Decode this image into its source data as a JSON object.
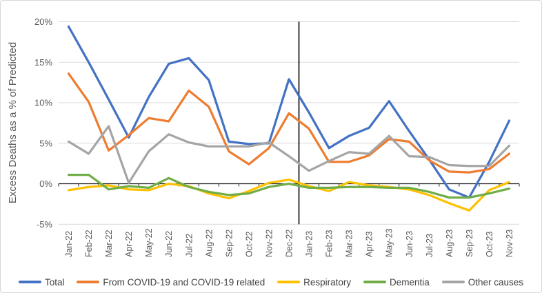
{
  "chart_data": {
    "type": "line",
    "title": "",
    "ylabel": "Excess Deaths as a % of Predicted",
    "xlabel": "",
    "ylim": [
      -5,
      20
    ],
    "yticks": [
      20,
      15,
      10,
      5,
      0,
      -5
    ],
    "ytick_suffix": "%",
    "grid": true,
    "legend_position": "bottom",
    "categories": [
      "Jan-22",
      "Feb-22",
      "Mar-22",
      "Apr-22",
      "May-22",
      "Jun-22",
      "Jul-22",
      "Aug-22",
      "Sep-22",
      "Oct-22",
      "Nov-22",
      "Dec-22",
      "Jan-23",
      "Feb-23",
      "Mar-23",
      "Apr-23",
      "May-23",
      "Jun-23",
      "Jul-23",
      "Aug-23",
      "Sep-23",
      "Oct-23",
      "Nov-23"
    ],
    "series": [
      {
        "name": "Total",
        "color": "#4472C4",
        "values": [
          19.4,
          15.0,
          10.4,
          5.7,
          10.7,
          14.8,
          15.5,
          12.8,
          5.2,
          4.9,
          5.0,
          12.9,
          8.8,
          4.4,
          5.9,
          6.9,
          10.2,
          6.5,
          3.0,
          -0.7,
          -1.7,
          2.7,
          7.8
        ]
      },
      {
        "name": "From COVID-19 and COVID-19 related",
        "color": "#ED7D31",
        "values": [
          13.6,
          10.1,
          4.1,
          6.0,
          8.1,
          7.7,
          11.5,
          9.5,
          4.0,
          2.4,
          4.4,
          8.7,
          6.8,
          2.7,
          2.7,
          3.5,
          5.5,
          5.2,
          2.9,
          1.5,
          1.4,
          1.8,
          3.7
        ]
      },
      {
        "name": "Respiratory",
        "color": "#FFC000",
        "values": [
          -0.8,
          -0.4,
          -0.2,
          -0.7,
          -0.8,
          0.0,
          -0.3,
          -1.2,
          -1.8,
          -0.9,
          0.1,
          0.5,
          -0.3,
          -0.9,
          0.2,
          -0.2,
          -0.4,
          -0.7,
          -1.4,
          -2.4,
          -3.3,
          -0.8,
          0.2
        ]
      },
      {
        "name": "Dementia",
        "color": "#70AD47",
        "values": [
          1.1,
          1.1,
          -0.7,
          -0.3,
          -0.5,
          0.7,
          -0.4,
          -1.0,
          -1.4,
          -1.2,
          -0.4,
          0.0,
          -0.5,
          -0.5,
          -0.4,
          -0.4,
          -0.5,
          -0.5,
          -1.0,
          -1.7,
          -1.7,
          -1.2,
          -0.6
        ]
      },
      {
        "name": "Other causes",
        "color": "#A5A5A5",
        "values": [
          5.2,
          3.7,
          7.1,
          0.1,
          4.0,
          6.1,
          5.1,
          4.6,
          4.6,
          4.6,
          5.1,
          3.4,
          1.6,
          2.8,
          3.9,
          3.7,
          5.9,
          3.4,
          3.3,
          2.3,
          2.2,
          2.2,
          4.7
        ]
      }
    ],
    "annotations": [
      {
        "type": "vertical-divider-line",
        "after_category": "Dec-22",
        "color": "#000000"
      }
    ],
    "axis_colors": {
      "grid": "#D9D9D9",
      "axis_line": "#1a1a1a",
      "tick_text": "#595959"
    }
  }
}
